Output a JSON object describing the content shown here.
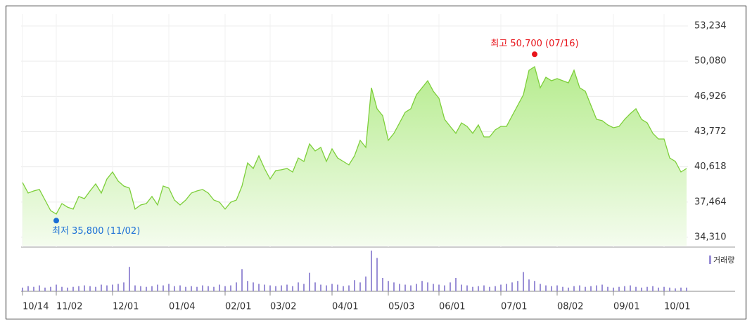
{
  "chart_data": {
    "type": "line",
    "x": [
      0,
      1,
      2,
      3,
      4,
      5,
      6,
      7,
      8,
      9,
      10,
      11,
      12,
      13,
      14,
      15,
      16,
      17,
      18,
      19,
      20,
      21,
      22,
      23,
      24,
      25,
      26,
      27,
      28,
      29,
      30,
      31,
      32,
      33,
      34,
      35,
      36,
      37,
      38,
      39,
      40,
      41,
      42,
      43,
      44,
      45,
      46,
      47,
      48,
      49,
      50,
      51,
      52,
      53,
      54,
      55,
      56,
      57,
      58,
      59,
      60,
      61,
      62,
      63,
      64,
      65,
      66,
      67,
      68,
      69,
      70,
      71,
      72,
      73,
      74,
      75,
      76,
      77,
      78,
      79,
      80,
      81,
      82,
      83,
      84,
      85,
      86,
      87,
      88,
      89,
      90,
      91,
      92,
      93,
      94,
      95,
      96,
      97,
      98,
      99,
      100,
      101,
      102,
      103,
      104,
      105,
      106,
      107,
      108,
      109,
      110,
      111,
      112,
      113,
      114,
      115,
      116,
      117,
      118
    ],
    "xlim": [
      0,
      118
    ],
    "xticks": [
      {
        "value": 0,
        "label": "10/14"
      },
      {
        "value": 6,
        "label": "11/02"
      },
      {
        "value": 16,
        "label": "12/01"
      },
      {
        "value": 26,
        "label": "01/04"
      },
      {
        "value": 36,
        "label": "02/01"
      },
      {
        "value": 44,
        "label": "03/02"
      },
      {
        "value": 55,
        "label": "04/01"
      },
      {
        "value": 65,
        "label": "05/03"
      },
      {
        "value": 74,
        "label": "06/01"
      },
      {
        "value": 85,
        "label": "07/01"
      },
      {
        "value": 95,
        "label": "08/02"
      },
      {
        "value": 105,
        "label": "09/01"
      },
      {
        "value": 114,
        "label": "10/01"
      }
    ],
    "ylim": [
      34310,
      53234
    ],
    "yticks": [
      {
        "value": 53234,
        "label": "53,234"
      },
      {
        "value": 50080,
        "label": "50,080"
      },
      {
        "value": 46926,
        "label": "46,926"
      },
      {
        "value": 43772,
        "label": "43,772"
      },
      {
        "value": 40618,
        "label": "40,618"
      },
      {
        "value": 37464,
        "label": "37,464"
      },
      {
        "value": 34310,
        "label": "34,310"
      }
    ],
    "grid": true,
    "series": [
      {
        "color": "#7dcf3a",
        "values": [
          39210,
          38270,
          38460,
          38590,
          37640,
          36700,
          36390,
          37330,
          37010,
          36830,
          37960,
          37770,
          38460,
          39090,
          38270,
          39530,
          40160,
          39340,
          38900,
          38710,
          36830,
          37200,
          37330,
          37960,
          37200,
          38900,
          38710,
          37640,
          37200,
          37640,
          38270,
          38460,
          38590,
          38270,
          37640,
          37450,
          36830,
          37450,
          37640,
          38900,
          40970,
          40470,
          41600,
          40470,
          39530,
          40280,
          40350,
          40470,
          40160,
          41410,
          41100,
          42670,
          42040,
          42360,
          41100,
          42230,
          41410,
          41100,
          40790,
          41600,
          42990,
          42360,
          47700,
          45820,
          45190,
          42990,
          43620,
          44560,
          45500,
          45820,
          47070,
          47700,
          48330,
          47390,
          46760,
          44870,
          44240,
          43620,
          44560,
          44240,
          43620,
          44370,
          43300,
          43300,
          43930,
          44240,
          44240,
          45190,
          46130,
          47070,
          49270,
          49590,
          47700,
          48640,
          48330,
          48520,
          48330,
          48140,
          49270,
          47700,
          47390,
          46130,
          44870,
          44750,
          44370,
          44120,
          44240,
          44870,
          45380,
          45820,
          44870,
          44560,
          43620,
          43110,
          43110,
          41410,
          41100,
          40160,
          40470
        ]
      }
    ],
    "volume": {
      "name": "거래량",
      "color": "#9a8fd6",
      "values": [
        5,
        7,
        6,
        8,
        5,
        6,
        9,
        6,
        5,
        6,
        7,
        8,
        7,
        6,
        9,
        8,
        9,
        10,
        12,
        33,
        8,
        7,
        6,
        7,
        9,
        8,
        10,
        7,
        8,
        6,
        7,
        6,
        8,
        7,
        6,
        9,
        7,
        8,
        12,
        30,
        14,
        12,
        10,
        9,
        8,
        7,
        8,
        9,
        7,
        12,
        10,
        25,
        12,
        9,
        8,
        10,
        9,
        7,
        8,
        15,
        12,
        20,
        55,
        45,
        18,
        14,
        12,
        10,
        9,
        8,
        10,
        14,
        12,
        10,
        9,
        8,
        12,
        18,
        9,
        8,
        6,
        7,
        8,
        6,
        7,
        9,
        10,
        12,
        14,
        26,
        16,
        14,
        10,
        8,
        7,
        8,
        6,
        5,
        7,
        8,
        6,
        7,
        8,
        9,
        6,
        5,
        6,
        7,
        8,
        6,
        5,
        6,
        7,
        5,
        6,
        5,
        4,
        5,
        5
      ]
    },
    "annotations": [
      {
        "text": "최고 50,700 (07/16)",
        "x": 91,
        "value": 50700,
        "color": "#e8141b"
      },
      {
        "text": "최저 35,800 (11/02)",
        "x": 6,
        "value": 35800,
        "color": "#1a6fd6"
      }
    ]
  }
}
